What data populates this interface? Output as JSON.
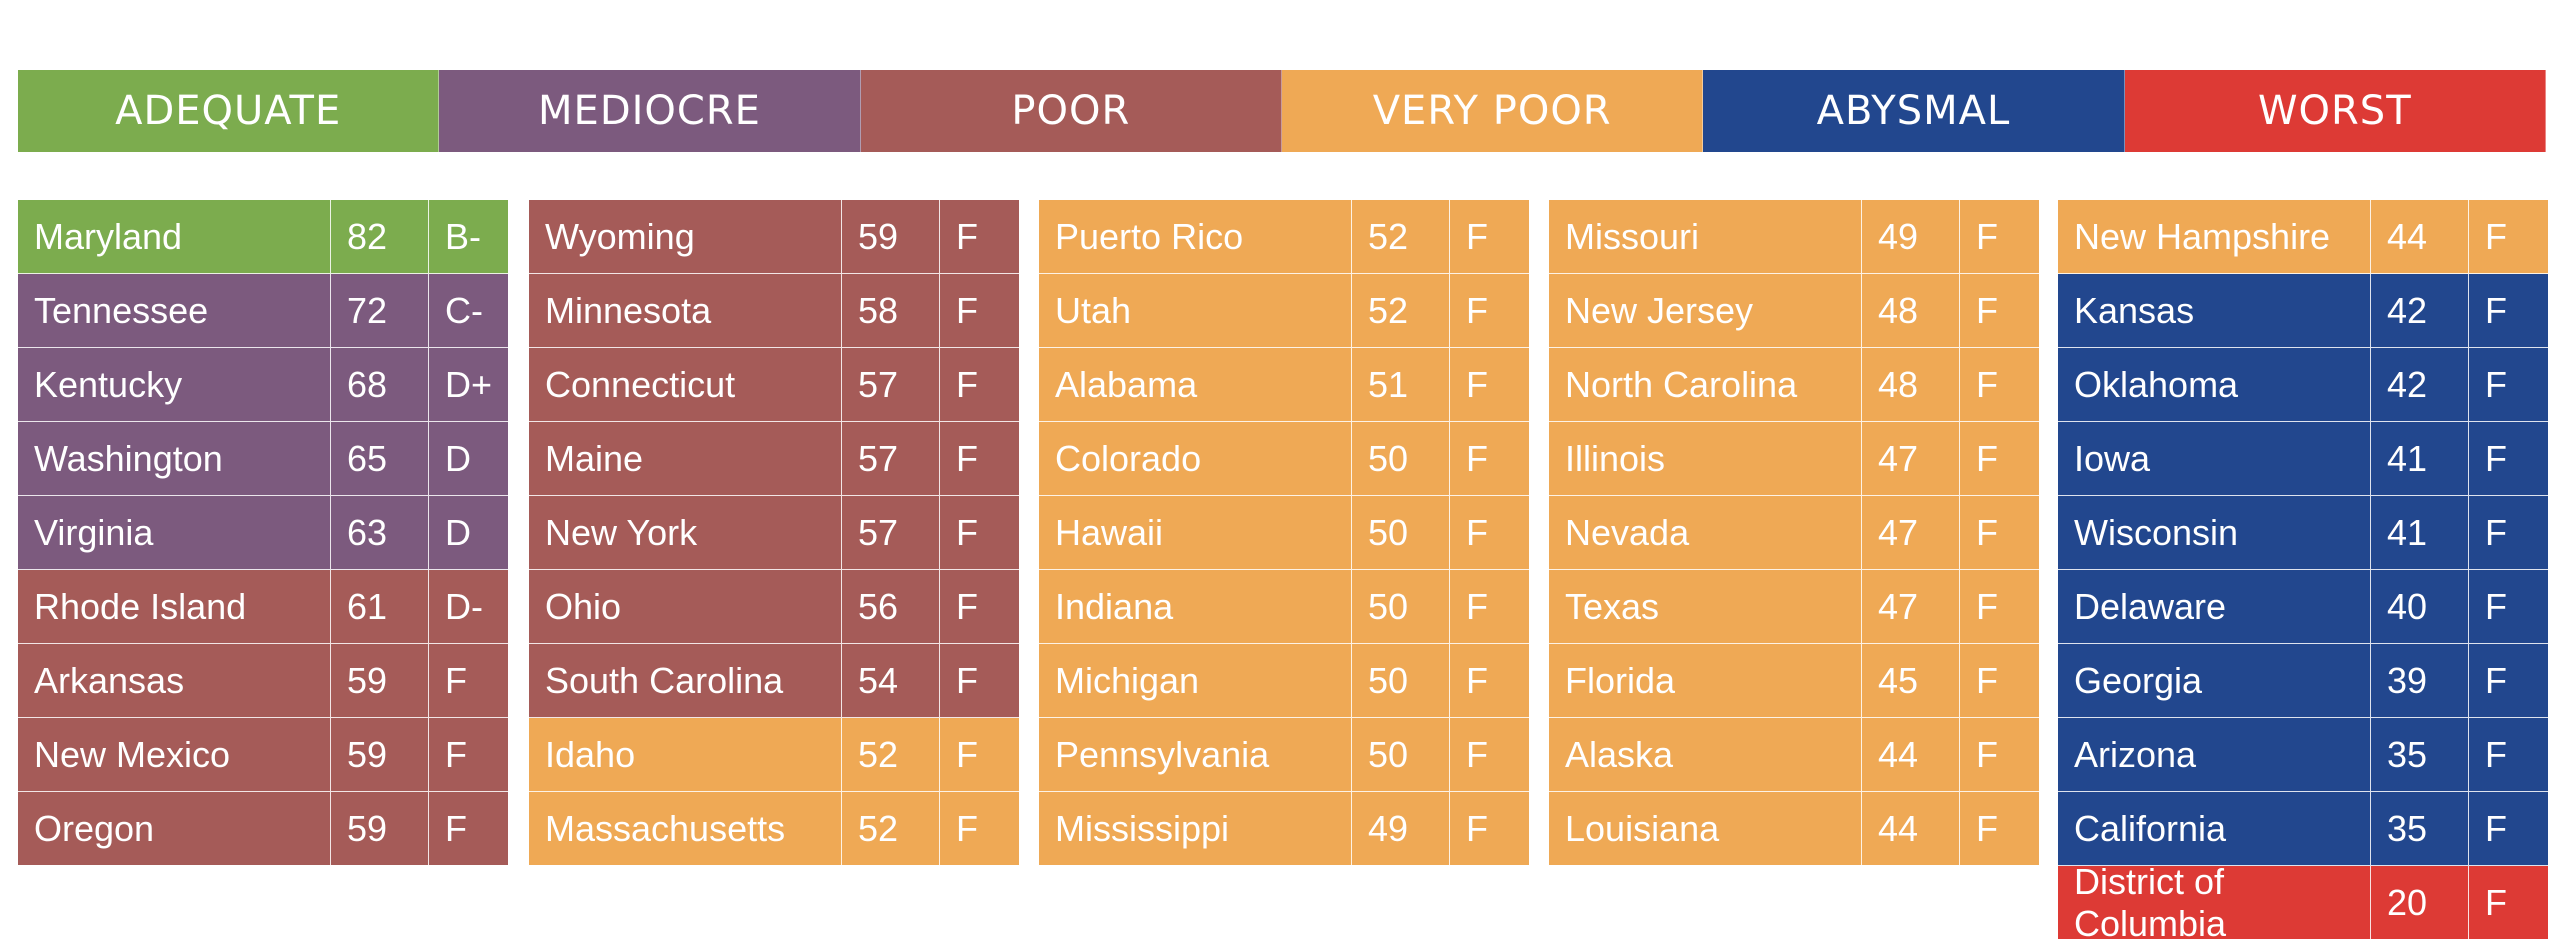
{
  "colors": {
    "adequate": "#7cac4e",
    "mediocre": "#7c5a7e",
    "poor": "#a55b58",
    "very_poor": "#efa955",
    "abysmal": "#22478e",
    "worst": "#dd3a35"
  },
  "legend": [
    {
      "label": "ADEQUATE",
      "tier": "adequate"
    },
    {
      "label": "MEDIOCRE",
      "tier": "mediocre"
    },
    {
      "label": "POOR",
      "tier": "poor"
    },
    {
      "label": "VERY POOR",
      "tier": "very_poor"
    },
    {
      "label": "ABYSMAL",
      "tier": "abysmal"
    },
    {
      "label": "WORST",
      "tier": "worst"
    }
  ],
  "columns": [
    [
      {
        "name": "Maryland",
        "score": "82",
        "grade": "B-",
        "tier": "adequate"
      },
      {
        "name": "Tennessee",
        "score": "72",
        "grade": "C-",
        "tier": "mediocre"
      },
      {
        "name": "Kentucky",
        "score": "68",
        "grade": "D+",
        "tier": "mediocre"
      },
      {
        "name": "Washington",
        "score": "65",
        "grade": "D",
        "tier": "mediocre"
      },
      {
        "name": "Virginia",
        "score": "63",
        "grade": "D",
        "tier": "mediocre"
      },
      {
        "name": "Rhode Island",
        "score": "61",
        "grade": "D-",
        "tier": "poor"
      },
      {
        "name": "Arkansas",
        "score": "59",
        "grade": "F",
        "tier": "poor"
      },
      {
        "name": "New Mexico",
        "score": "59",
        "grade": "F",
        "tier": "poor"
      },
      {
        "name": "Oregon",
        "score": "59",
        "grade": "F",
        "tier": "poor"
      }
    ],
    [
      {
        "name": "Wyoming",
        "score": "59",
        "grade": "F",
        "tier": "poor"
      },
      {
        "name": "Minnesota",
        "score": "58",
        "grade": "F",
        "tier": "poor"
      },
      {
        "name": "Connecticut",
        "score": "57",
        "grade": "F",
        "tier": "poor"
      },
      {
        "name": "Maine",
        "score": "57",
        "grade": "F",
        "tier": "poor"
      },
      {
        "name": "New York",
        "score": "57",
        "grade": "F",
        "tier": "poor"
      },
      {
        "name": "Ohio",
        "score": "56",
        "grade": "F",
        "tier": "poor"
      },
      {
        "name": "South Carolina",
        "score": "54",
        "grade": "F",
        "tier": "poor"
      },
      {
        "name": "Idaho",
        "score": "52",
        "grade": "F",
        "tier": "very_poor"
      },
      {
        "name": "Massachusetts",
        "score": "52",
        "grade": "F",
        "tier": "very_poor"
      }
    ],
    [
      {
        "name": "Puerto Rico",
        "score": "52",
        "grade": "F",
        "tier": "very_poor"
      },
      {
        "name": "Utah",
        "score": "52",
        "grade": "F",
        "tier": "very_poor"
      },
      {
        "name": "Alabama",
        "score": "51",
        "grade": "F",
        "tier": "very_poor"
      },
      {
        "name": "Colorado",
        "score": "50",
        "grade": "F",
        "tier": "very_poor"
      },
      {
        "name": "Hawaii",
        "score": "50",
        "grade": "F",
        "tier": "very_poor"
      },
      {
        "name": "Indiana",
        "score": "50",
        "grade": "F",
        "tier": "very_poor"
      },
      {
        "name": "Michigan",
        "score": "50",
        "grade": "F",
        "tier": "very_poor"
      },
      {
        "name": "Pennsylvania",
        "score": "50",
        "grade": "F",
        "tier": "very_poor"
      },
      {
        "name": "Mississippi",
        "score": "49",
        "grade": "F",
        "tier": "very_poor"
      }
    ],
    [
      {
        "name": "Missouri",
        "score": "49",
        "grade": "F",
        "tier": "very_poor"
      },
      {
        "name": "New Jersey",
        "score": "48",
        "grade": "F",
        "tier": "very_poor"
      },
      {
        "name": "North Carolina",
        "score": "48",
        "grade": "F",
        "tier": "very_poor"
      },
      {
        "name": "Illinois",
        "score": "47",
        "grade": "F",
        "tier": "very_poor"
      },
      {
        "name": "Nevada",
        "score": "47",
        "grade": "F",
        "tier": "very_poor"
      },
      {
        "name": "Texas",
        "score": "47",
        "grade": "F",
        "tier": "very_poor"
      },
      {
        "name": "Florida",
        "score": "45",
        "grade": "F",
        "tier": "very_poor"
      },
      {
        "name": "Alaska",
        "score": "44",
        "grade": "F",
        "tier": "very_poor"
      },
      {
        "name": "Louisiana",
        "score": "44",
        "grade": "F",
        "tier": "very_poor"
      }
    ],
    [
      {
        "name": "New Hampshire",
        "score": "44",
        "grade": "F",
        "tier": "very_poor"
      },
      {
        "name": "Kansas",
        "score": "42",
        "grade": "F",
        "tier": "abysmal"
      },
      {
        "name": "Oklahoma",
        "score": "42",
        "grade": "F",
        "tier": "abysmal"
      },
      {
        "name": "Iowa",
        "score": "41",
        "grade": "F",
        "tier": "abysmal"
      },
      {
        "name": "Wisconsin",
        "score": "41",
        "grade": "F",
        "tier": "abysmal"
      },
      {
        "name": "Delaware",
        "score": "40",
        "grade": "F",
        "tier": "abysmal"
      },
      {
        "name": "Georgia",
        "score": "39",
        "grade": "F",
        "tier": "abysmal"
      },
      {
        "name": "Arizona",
        "score": "35",
        "grade": "F",
        "tier": "abysmal"
      },
      {
        "name": "California",
        "score": "35",
        "grade": "F",
        "tier": "abysmal"
      },
      {
        "name": "District of Columbia",
        "score": "20",
        "grade": "F",
        "tier": "worst"
      }
    ]
  ]
}
